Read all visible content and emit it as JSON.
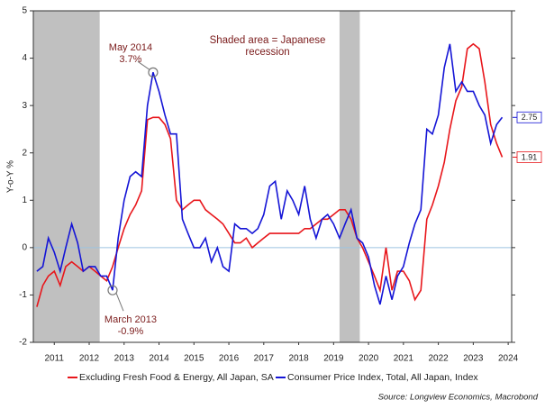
{
  "chart_data": {
    "type": "line",
    "y_label": "Y-o-Y %",
    "note": [
      "Shaded area = Japanese",
      "recession"
    ],
    "source": "Source: Longview Economics, Macrobond",
    "xlim": [
      2010.9,
      2024.6
    ],
    "ylim": [
      -2,
      5
    ],
    "yticks": [
      -2,
      -1,
      0,
      1,
      2,
      3,
      4,
      5
    ],
    "xticks": [
      {
        "value": 2011.5,
        "label": "2011"
      },
      {
        "value": 2012.5,
        "label": "2012"
      },
      {
        "value": 2013.5,
        "label": "2013"
      },
      {
        "value": 2014.5,
        "label": "2014"
      },
      {
        "value": 2015.5,
        "label": "2015"
      },
      {
        "value": 2016.5,
        "label": "2016"
      },
      {
        "value": 2017.5,
        "label": "2017"
      },
      {
        "value": 2018.5,
        "label": "2018"
      },
      {
        "value": 2019.5,
        "label": "2019"
      },
      {
        "value": 2020.5,
        "label": "2020"
      },
      {
        "value": 2021.5,
        "label": "2021"
      },
      {
        "value": 2022.5,
        "label": "2022"
      },
      {
        "value": 2023.5,
        "label": "2023"
      },
      {
        "value": 2024.5,
        "label": "2024"
      }
    ],
    "recessions": [
      [
        2010.9,
        2012.8
      ],
      [
        2019.67,
        2020.25
      ]
    ],
    "x": [
      2011.0,
      2011.17,
      2011.33,
      2011.5,
      2011.67,
      2011.83,
      2012.0,
      2012.17,
      2012.33,
      2012.5,
      2012.67,
      2012.83,
      2013.0,
      2013.17,
      2013.33,
      2013.5,
      2013.67,
      2013.83,
      2014.0,
      2014.17,
      2014.33,
      2014.5,
      2014.67,
      2014.83,
      2015.0,
      2015.17,
      2015.33,
      2015.5,
      2015.67,
      2015.83,
      2016.0,
      2016.17,
      2016.33,
      2016.5,
      2016.67,
      2016.83,
      2017.0,
      2017.17,
      2017.33,
      2017.5,
      2017.67,
      2017.83,
      2018.0,
      2018.17,
      2018.33,
      2018.5,
      2018.67,
      2018.83,
      2019.0,
      2019.17,
      2019.33,
      2019.5,
      2019.67,
      2019.83,
      2020.0,
      2020.17,
      2020.33,
      2020.5,
      2020.67,
      2020.83,
      2021.0,
      2021.17,
      2021.33,
      2021.5,
      2021.67,
      2021.83,
      2022.0,
      2022.17,
      2022.33,
      2022.5,
      2022.67,
      2022.83,
      2023.0,
      2023.17,
      2023.33,
      2023.5,
      2023.67,
      2023.83,
      2024.0,
      2024.17,
      2024.33
    ],
    "series": [
      {
        "name": "Excluding Fresh Food & Energy, All Japan, SA",
        "color": "#e8161b",
        "values": [
          -1.25,
          -0.8,
          -0.6,
          -0.5,
          -0.8,
          -0.4,
          -0.3,
          -0.4,
          -0.5,
          -0.4,
          -0.5,
          -0.6,
          -0.7,
          -0.4,
          0.0,
          0.4,
          0.7,
          0.9,
          1.2,
          2.7,
          2.75,
          2.75,
          2.6,
          2.3,
          1.0,
          0.8,
          0.9,
          1.0,
          1.0,
          0.8,
          0.7,
          0.6,
          0.5,
          0.3,
          0.1,
          0.1,
          0.2,
          0.0,
          0.1,
          0.2,
          0.3,
          0.3,
          0.3,
          0.3,
          0.3,
          0.3,
          0.4,
          0.4,
          0.5,
          0.6,
          0.6,
          0.7,
          0.8,
          0.8,
          0.6,
          0.2,
          0.0,
          -0.3,
          -0.6,
          -0.9,
          0.0,
          -0.9,
          -0.5,
          -0.5,
          -0.7,
          -1.1,
          -0.9,
          0.6,
          0.9,
          1.3,
          1.8,
          2.5,
          3.1,
          3.4,
          4.2,
          4.3,
          4.2,
          3.5,
          2.6,
          2.2,
          1.91
        ]
      },
      {
        "name": "Consumer Price Index, Total, All Japan, Index",
        "color": "#1515d6",
        "values": [
          -0.5,
          -0.4,
          0.2,
          -0.1,
          -0.5,
          0.0,
          0.5,
          0.1,
          -0.5,
          -0.4,
          -0.4,
          -0.6,
          -0.6,
          -0.9,
          0.2,
          1.0,
          1.5,
          1.6,
          1.5,
          3.0,
          3.7,
          3.3,
          2.8,
          2.4,
          2.4,
          0.6,
          0.3,
          0.0,
          0.0,
          0.2,
          -0.3,
          0.0,
          -0.4,
          -0.5,
          0.5,
          0.4,
          0.4,
          0.3,
          0.4,
          0.7,
          1.3,
          1.4,
          0.6,
          1.2,
          1.0,
          0.7,
          1.3,
          0.6,
          0.2,
          0.6,
          0.7,
          0.5,
          0.2,
          0.5,
          0.8,
          0.2,
          0.1,
          -0.2,
          -0.8,
          -1.2,
          -0.6,
          -1.1,
          -0.6,
          -0.4,
          0.1,
          0.5,
          0.8,
          2.5,
          2.4,
          2.8,
          3.8,
          4.3,
          3.3,
          3.5,
          3.3,
          3.3,
          3.0,
          2.8,
          2.2,
          2.6,
          2.75
        ]
      }
    ],
    "annotations": [
      {
        "label": "May 2014",
        "value_label": "3.7%",
        "x": 2014.33,
        "y": 3.7
      },
      {
        "label": "March 2013",
        "value_label": "-0.9%",
        "x": 2013.17,
        "y": -0.9
      }
    ]
  }
}
